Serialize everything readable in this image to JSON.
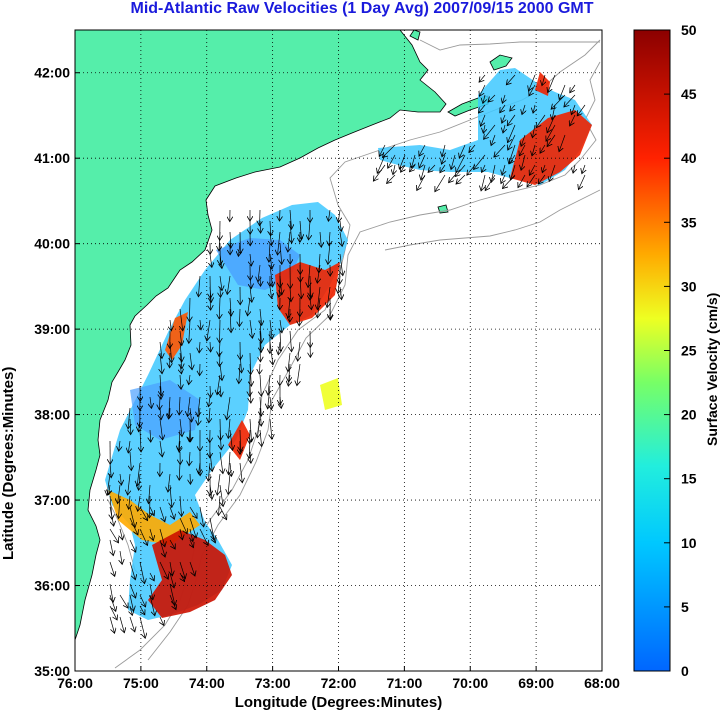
{
  "title": "Mid-Atlantic Raw Velocities (1 Day Avg) 2007/09/15 2000 GMT",
  "axes": {
    "xlabel": "Longitude (Degrees:Minutes)",
    "ylabel": "Latitude (Degrees:Minutes)",
    "x_ticks": [
      "76:00",
      "75:00",
      "74:00",
      "73:00",
      "72:00",
      "71:00",
      "70:00",
      "69:00",
      "68:00"
    ],
    "y_ticks": [
      "42:00",
      "41:00",
      "40:00",
      "39:00",
      "38:00",
      "37:00",
      "36:00",
      "35:00"
    ],
    "x_range": [
      -76,
      -68
    ],
    "y_range": [
      35,
      42.5
    ],
    "grid": "dotted"
  },
  "colorbar": {
    "label": "Surface Velocity (cm/s)",
    "ticks": [
      "50",
      "45",
      "40",
      "35",
      "30",
      "25",
      "20",
      "15",
      "10",
      "5",
      "0"
    ],
    "range": [
      0,
      50
    ],
    "colormap": "jet",
    "low_color": "#0066ff",
    "mid_color": "#33ffaa",
    "high_color": "#8b0000"
  },
  "colors": {
    "land": "#55eeaa",
    "ocean": "#ffffff",
    "coastline": "#000000",
    "bathymetry": "#9a9a9a",
    "title": "#1a1adc"
  }
}
